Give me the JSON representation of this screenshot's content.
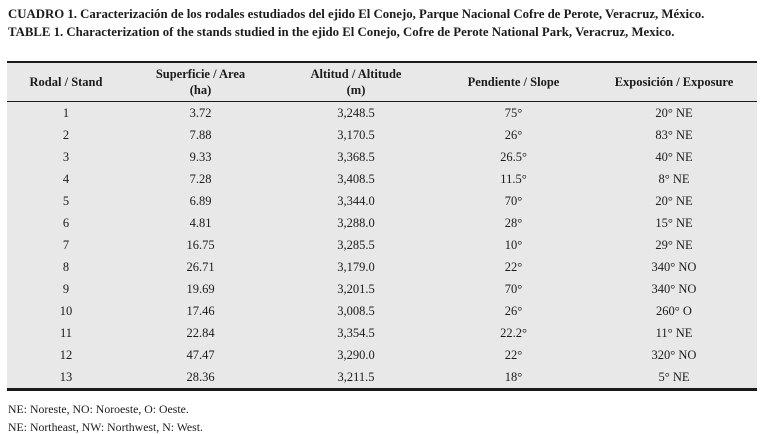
{
  "page": {
    "caption_es": "CUADRO 1. Caracterización de los rodales estudiados del ejido El Conejo, Parque Nacional Cofre de Perote, Veracruz, México.",
    "caption_en": "TABLE 1. Characterization of the stands studied in the ejido El Conejo, Cofre de Perote National Park, Veracruz, Mexico.",
    "footnote_es": "NE: Noreste, NO: Noroeste, O: Oeste.",
    "footnote_en": "NE: Northeast, NW: Northwest, N: West."
  },
  "table": {
    "headers": [
      {
        "label": "Rodal / Stand",
        "sub": ""
      },
      {
        "label": "Superficie / Area",
        "sub": "(ha)"
      },
      {
        "label": "Altitud / Altitude",
        "sub": "(m)"
      },
      {
        "label": "Pendiente / Slope",
        "sub": ""
      },
      {
        "label": "Exposición / Exposure",
        "sub": ""
      }
    ],
    "rows": [
      [
        "1",
        "3.72",
        "3,248.5",
        "75°",
        "20° NE"
      ],
      [
        "2",
        "7.88",
        "3,170.5",
        "26°",
        "83° NE"
      ],
      [
        "3",
        "9.33",
        "3,368.5",
        "26.5°",
        "40° NE"
      ],
      [
        "4",
        "7.28",
        "3,408.5",
        "11.5°",
        "8° NE"
      ],
      [
        "5",
        "6.89",
        "3,344.0",
        "70°",
        "20° NE"
      ],
      [
        "6",
        "4.81",
        "3,288.0",
        "28°",
        "15° NE"
      ],
      [
        "7",
        "16.75",
        "3,285.5",
        "10°",
        "29° NE"
      ],
      [
        "8",
        "26.71",
        "3,179.0",
        "22°",
        "340° NO"
      ],
      [
        "9",
        "19.69",
        "3,201.5",
        "70°",
        "340° NO"
      ],
      [
        "10",
        "17.46",
        "3,008.5",
        "26°",
        "260° O"
      ],
      [
        "11",
        "22.84",
        "3,354.5",
        "22.2°",
        "11° NE"
      ],
      [
        "12",
        "47.47",
        "3,290.0",
        "22°",
        "320° NO"
      ],
      [
        "13",
        "28.36",
        "3,211.5",
        "18°",
        "5° NE"
      ]
    ]
  },
  "colors": {
    "table_background": "#e8e8e8",
    "rule": "#1a1a1a",
    "text": "#1c1c1c"
  }
}
